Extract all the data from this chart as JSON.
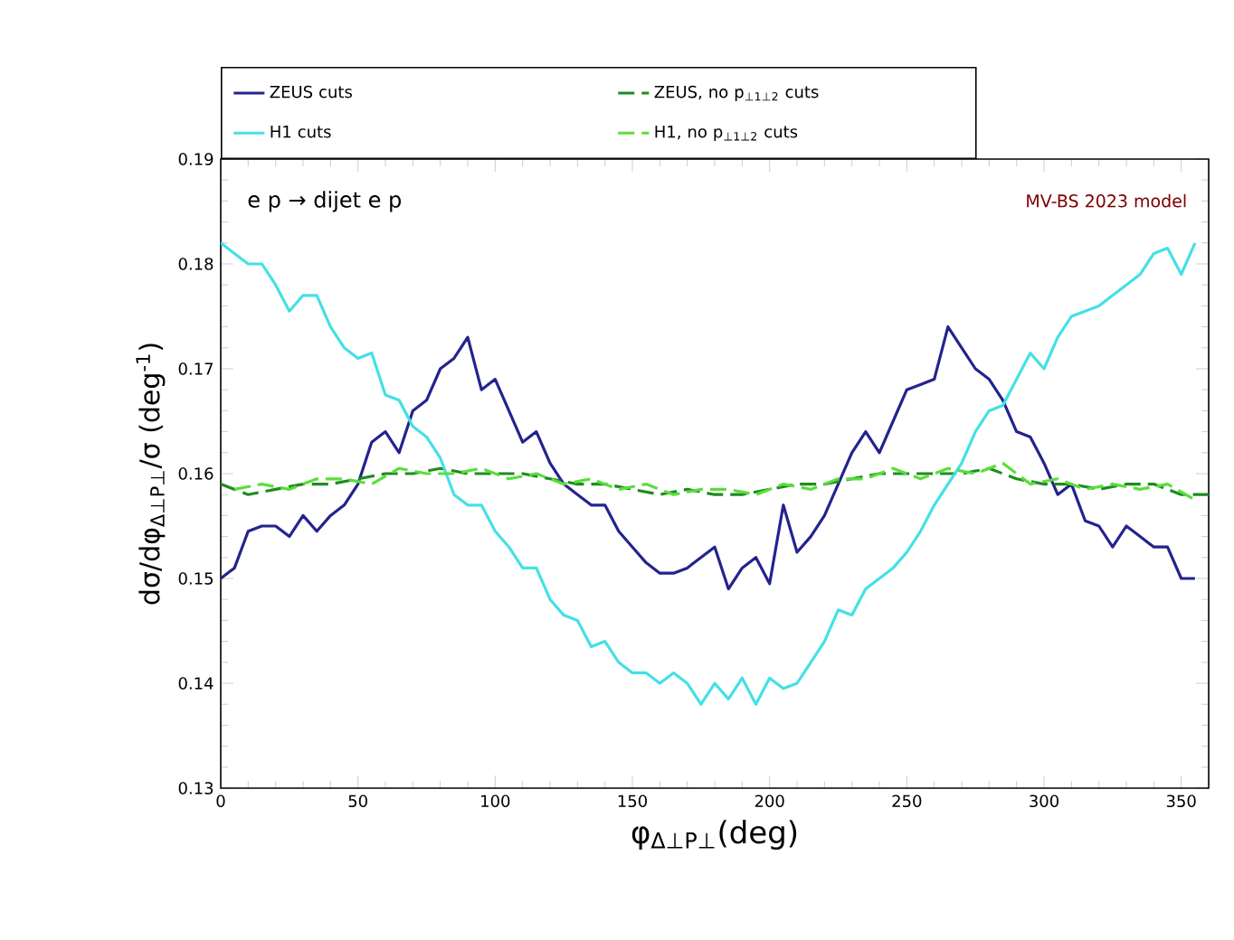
{
  "chart_data": {
    "type": "line",
    "xlabel": "φ$_{Δ⊥P⊥}$(deg)",
    "ylabel": "dσ/dφ$_{Δ⊥P⊥}$/σ (deg$^{-1}$)",
    "annotations": [
      "e p → dijet e p",
      "MV-BS 2023 model"
    ],
    "xlim": [
      0,
      360
    ],
    "xticks": [
      0,
      50,
      100,
      150,
      200,
      250,
      300,
      350
    ],
    "ylim": [
      0.13,
      0.19
    ],
    "yticks": [
      0.13,
      0.14,
      0.15,
      0.16,
      0.17,
      0.18,
      0.19
    ],
    "legend": "top",
    "grid": false,
    "marker": "none",
    "series": [
      {
        "name": "ZEUS cuts",
        "color": "#23238e",
        "line_style": "solid",
        "x": [
          0,
          5,
          10,
          15,
          20,
          25,
          30,
          35,
          40,
          45,
          50,
          55,
          60,
          65,
          70,
          75,
          80,
          85,
          90,
          95,
          100,
          105,
          110,
          115,
          120,
          125,
          130,
          135,
          140,
          145,
          150,
          155,
          160,
          165,
          170,
          175,
          180,
          185,
          190,
          195,
          200,
          205,
          210,
          215,
          220,
          225,
          230,
          235,
          240,
          245,
          250,
          255,
          260,
          265,
          270,
          275,
          280,
          285,
          290,
          295,
          300,
          305,
          310,
          315,
          320,
          325,
          330,
          335,
          340,
          345,
          350,
          355
        ],
        "values": [
          0.15,
          0.151,
          0.1545,
          0.155,
          0.155,
          0.154,
          0.156,
          0.1545,
          0.156,
          0.157,
          0.159,
          0.163,
          0.164,
          0.162,
          0.166,
          0.167,
          0.17,
          0.171,
          0.173,
          0.168,
          0.169,
          0.166,
          0.163,
          0.164,
          0.161,
          0.159,
          0.158,
          0.157,
          0.157,
          0.1545,
          0.153,
          0.1515,
          0.1505,
          0.1505,
          0.151,
          0.152,
          0.153,
          0.149,
          0.151,
          0.152,
          0.1495,
          0.157,
          0.1525,
          0.154,
          0.156,
          0.159,
          0.162,
          0.164,
          0.162,
          0.165,
          0.168,
          0.1685,
          0.169,
          0.174,
          0.172,
          0.17,
          0.169,
          0.167,
          0.164,
          0.1635,
          0.161,
          0.158,
          0.159,
          0.1555,
          0.155,
          0.153,
          0.155,
          0.154,
          0.153,
          0.153,
          0.15,
          0.15
        ]
      },
      {
        "name": "ZEUS, no p$_{⊥1⊥2}$ cuts",
        "color": "#1e8c1e",
        "line_style": "dashed",
        "x": [
          0,
          10,
          20,
          30,
          40,
          50,
          60,
          70,
          80,
          90,
          100,
          110,
          120,
          130,
          140,
          150,
          160,
          170,
          180,
          190,
          200,
          210,
          220,
          230,
          240,
          250,
          260,
          270,
          280,
          290,
          300,
          310,
          320,
          330,
          340,
          350,
          360
        ],
        "values": [
          0.159,
          0.158,
          0.1585,
          0.159,
          0.159,
          0.1595,
          0.16,
          0.16,
          0.1605,
          0.16,
          0.16,
          0.16,
          0.1595,
          0.159,
          0.159,
          0.1585,
          0.158,
          0.1585,
          0.158,
          0.158,
          0.1585,
          0.159,
          0.159,
          0.1595,
          0.16,
          0.16,
          0.16,
          0.16,
          0.1605,
          0.1595,
          0.159,
          0.159,
          0.1585,
          0.159,
          0.159,
          0.158,
          0.158
        ]
      },
      {
        "name": "H1 cuts",
        "color": "#44e0e6",
        "line_style": "solid",
        "x": [
          0,
          5,
          10,
          15,
          20,
          25,
          30,
          35,
          40,
          45,
          50,
          55,
          60,
          65,
          70,
          75,
          80,
          85,
          90,
          95,
          100,
          105,
          110,
          115,
          120,
          125,
          130,
          135,
          140,
          145,
          150,
          155,
          160,
          165,
          170,
          175,
          180,
          185,
          190,
          195,
          200,
          205,
          210,
          215,
          220,
          225,
          230,
          235,
          240,
          245,
          250,
          255,
          260,
          265,
          270,
          275,
          280,
          285,
          290,
          295,
          300,
          305,
          310,
          315,
          320,
          325,
          330,
          335,
          340,
          345,
          350,
          355
        ],
        "values": [
          0.182,
          0.181,
          0.18,
          0.18,
          0.178,
          0.1755,
          0.177,
          0.177,
          0.174,
          0.172,
          0.171,
          0.1715,
          0.1675,
          0.167,
          0.1645,
          0.1635,
          0.1615,
          0.158,
          0.157,
          0.157,
          0.1545,
          0.153,
          0.151,
          0.151,
          0.148,
          0.1465,
          0.146,
          0.1435,
          0.144,
          0.142,
          0.141,
          0.141,
          0.14,
          0.141,
          0.14,
          0.138,
          0.14,
          0.1385,
          0.1405,
          0.138,
          0.1405,
          0.1395,
          0.14,
          0.142,
          0.144,
          0.147,
          0.1465,
          0.149,
          0.15,
          0.151,
          0.1525,
          0.1545,
          0.157,
          0.159,
          0.161,
          0.164,
          0.166,
          0.1665,
          0.169,
          0.1715,
          0.17,
          0.173,
          0.175,
          0.1755,
          0.176,
          0.177,
          0.178,
          0.179,
          0.181,
          0.1815,
          0.179,
          0.182
        ]
      },
      {
        "name": "H1, no p$_{⊥1⊥2}$ cuts",
        "color": "#5ade3c",
        "line_style": "dashed",
        "x": [
          5,
          15,
          25,
          35,
          45,
          55,
          65,
          75,
          85,
          95,
          105,
          115,
          125,
          135,
          145,
          155,
          165,
          175,
          185,
          195,
          205,
          215,
          225,
          235,
          245,
          255,
          265,
          275,
          285,
          295,
          305,
          315,
          325,
          335,
          345,
          355
        ],
        "values": [
          0.1585,
          0.159,
          0.1585,
          0.1595,
          0.1595,
          0.159,
          0.1605,
          0.16,
          0.16,
          0.1605,
          0.1595,
          0.16,
          0.159,
          0.1595,
          0.1585,
          0.159,
          0.158,
          0.1585,
          0.1585,
          0.158,
          0.159,
          0.1585,
          0.1595,
          0.1595,
          0.1605,
          0.1595,
          0.1605,
          0.16,
          0.161,
          0.159,
          0.1595,
          0.1585,
          0.159,
          0.1585,
          0.159,
          0.1575
        ]
      }
    ]
  }
}
